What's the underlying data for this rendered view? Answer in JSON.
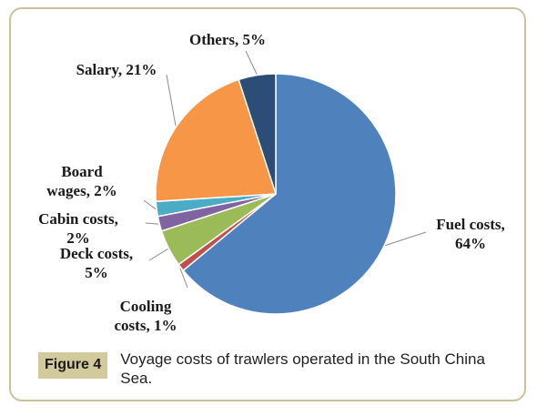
{
  "chart_data": {
    "type": "pie",
    "title": "",
    "slices": [
      {
        "name": "Fuel costs",
        "value": 64,
        "label_lines": [
          "Fuel costs,",
          "64%"
        ],
        "color": "#4f81bd"
      },
      {
        "name": "Cooling costs",
        "value": 1,
        "label_lines": [
          "Cooling",
          "costs, 1%"
        ],
        "color": "#c0504d"
      },
      {
        "name": "Deck costs",
        "value": 5,
        "label_lines": [
          "Deck costs,",
          "5%"
        ],
        "color": "#9bbb59"
      },
      {
        "name": "Cabin costs",
        "value": 2,
        "label_lines": [
          "Cabin costs,",
          "2%"
        ],
        "color": "#8064a2"
      },
      {
        "name": "Board wages",
        "value": 2,
        "label_lines": [
          "Board",
          "wages, 2%"
        ],
        "color": "#4bacc6"
      },
      {
        "name": "Salary",
        "value": 21,
        "label_lines": [
          "Salary, 21%"
        ],
        "color": "#f79646"
      },
      {
        "name": "Others",
        "value": 5,
        "label_lines": [
          "Others, 5%"
        ],
        "color": "#2c4d75"
      }
    ],
    "start_angle_deg": 0,
    "direction": "clockwise",
    "legend": "none"
  },
  "caption": {
    "badge": "Figure 4",
    "text": "Voyage costs of trawlers operated in the South China Sea."
  }
}
